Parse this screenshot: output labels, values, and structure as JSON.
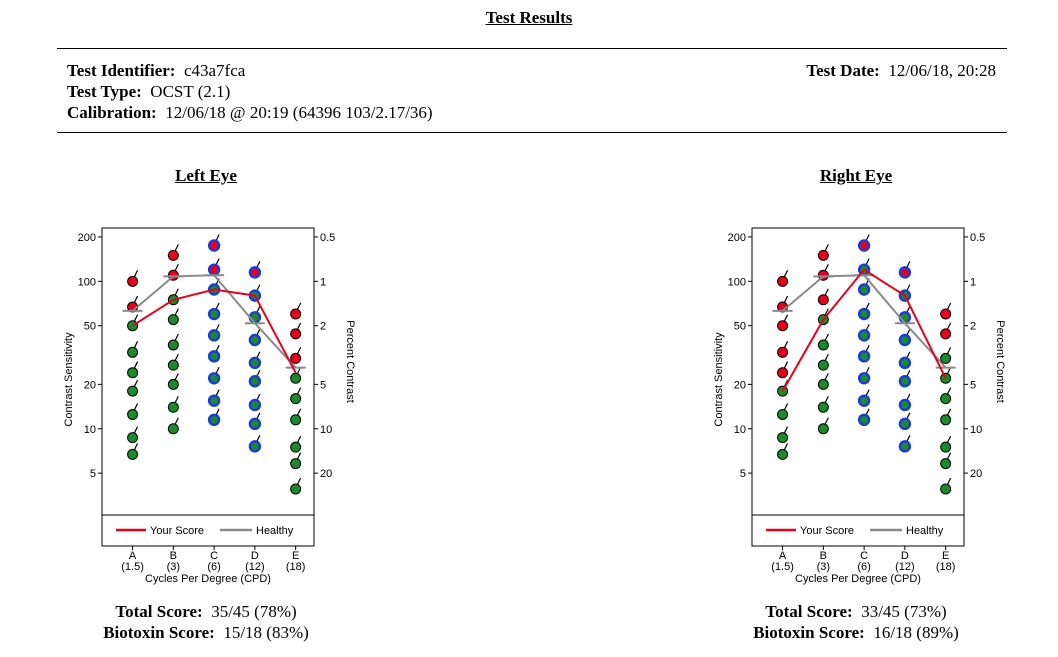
{
  "page": {
    "title": "Test Results",
    "test_identifier_label": "Test Identifier:",
    "test_identifier": "c43a7fca",
    "test_type_label": "Test Type:",
    "test_type": "OCST (2.1)",
    "calibration_label": "Calibration:",
    "calibration": "12/06/18 @ 20:19 (64396 103/2.17/36)",
    "test_date_label": "Test Date:",
    "test_date": "12/06/18, 20:28"
  },
  "colors": {
    "red": "#e8001c",
    "green": "#1a8a2a",
    "blue": "#1a3adf",
    "your_score_line": "#e8001c",
    "healthy_line": "#8a8a8a"
  },
  "left_eye": {
    "title": "Left Eye",
    "total_label": "Total Score:",
    "total": "35/45 (78%)",
    "biotoxin_label": "Biotoxin Score:",
    "biotoxin": "15/18 (83%)"
  },
  "right_eye": {
    "title": "Right Eye",
    "total_label": "Total Score:",
    "total": "33/45 (73%)",
    "biotoxin_label": "Biotoxin Score:",
    "biotoxin": "16/18 (89%)"
  },
  "chart_data": [
    {
      "type": "line",
      "title": "Left Eye",
      "xlabel": "Cycles Per Degree (CPD)",
      "ylabel": "Contrast Sensitivity",
      "y2label": "Percent Contrast",
      "yscale": "log",
      "ylim": [
        2.6,
        230
      ],
      "yticks": [
        200,
        100,
        50,
        20,
        10,
        5
      ],
      "y2ticks": [
        "0.5",
        "1",
        "2",
        "5",
        "10",
        "20"
      ],
      "categories": [
        "A",
        "B",
        "C",
        "D",
        "E"
      ],
      "category_sublabels": [
        "(1.5)",
        "(3)",
        "(6)",
        "(12)",
        "(18)"
      ],
      "legend": [
        "Your Score",
        "Healthy"
      ],
      "series": [
        {
          "name": "Your Score",
          "values": [
            50,
            75,
            88,
            80,
            24
          ]
        },
        {
          "name": "Healthy",
          "values": [
            63,
            108,
            110,
            52,
            26
          ]
        }
      ],
      "dots": [
        {
          "x": 0,
          "y": 100,
          "c": "red"
        },
        {
          "x": 0,
          "y": 67,
          "c": "red"
        },
        {
          "x": 0,
          "y": 50,
          "c": "green"
        },
        {
          "x": 0,
          "y": 33,
          "c": "green"
        },
        {
          "x": 0,
          "y": 24,
          "c": "green"
        },
        {
          "x": 0,
          "y": 18,
          "c": "green"
        },
        {
          "x": 0,
          "y": 12.5,
          "c": "green"
        },
        {
          "x": 0,
          "y": 8.7,
          "c": "green"
        },
        {
          "x": 0,
          "y": 6.7,
          "c": "green"
        },
        {
          "x": 1,
          "y": 150,
          "c": "red"
        },
        {
          "x": 1,
          "y": 110,
          "c": "red"
        },
        {
          "x": 1,
          "y": 75,
          "c": "green"
        },
        {
          "x": 1,
          "y": 55,
          "c": "green"
        },
        {
          "x": 1,
          "y": 37,
          "c": "green"
        },
        {
          "x": 1,
          "y": 27,
          "c": "green"
        },
        {
          "x": 1,
          "y": 20,
          "c": "green"
        },
        {
          "x": 1,
          "y": 14,
          "c": "green"
        },
        {
          "x": 1,
          "y": 10,
          "c": "green"
        },
        {
          "x": 2,
          "y": 175,
          "c": "red",
          "ring": "blue"
        },
        {
          "x": 2,
          "y": 120,
          "c": "red",
          "ring": "blue"
        },
        {
          "x": 2,
          "y": 88,
          "c": "green",
          "ring": "blue"
        },
        {
          "x": 2,
          "y": 60,
          "c": "green",
          "ring": "blue"
        },
        {
          "x": 2,
          "y": 43,
          "c": "green",
          "ring": "blue"
        },
        {
          "x": 2,
          "y": 31,
          "c": "green",
          "ring": "blue"
        },
        {
          "x": 2,
          "y": 22,
          "c": "green",
          "ring": "blue"
        },
        {
          "x": 2,
          "y": 15.5,
          "c": "green",
          "ring": "blue"
        },
        {
          "x": 2,
          "y": 11.5,
          "c": "green",
          "ring": "blue"
        },
        {
          "x": 3,
          "y": 115,
          "c": "red",
          "ring": "blue"
        },
        {
          "x": 3,
          "y": 80,
          "c": "green",
          "ring": "blue"
        },
        {
          "x": 3,
          "y": 57,
          "c": "green",
          "ring": "blue"
        },
        {
          "x": 3,
          "y": 40,
          "c": "green",
          "ring": "blue"
        },
        {
          "x": 3,
          "y": 28,
          "c": "green",
          "ring": "blue"
        },
        {
          "x": 3,
          "y": 21,
          "c": "green",
          "ring": "blue"
        },
        {
          "x": 3,
          "y": 14.5,
          "c": "green",
          "ring": "blue"
        },
        {
          "x": 3,
          "y": 10.8,
          "c": "green",
          "ring": "blue"
        },
        {
          "x": 3,
          "y": 7.6,
          "c": "green",
          "ring": "blue"
        },
        {
          "x": 4,
          "y": 60,
          "c": "red"
        },
        {
          "x": 4,
          "y": 44,
          "c": "red"
        },
        {
          "x": 4,
          "y": 30,
          "c": "red"
        },
        {
          "x": 4,
          "y": 22,
          "c": "green"
        },
        {
          "x": 4,
          "y": 16,
          "c": "green"
        },
        {
          "x": 4,
          "y": 11.5,
          "c": "green"
        },
        {
          "x": 4,
          "y": 7.5,
          "c": "green"
        },
        {
          "x": 4,
          "y": 5.8,
          "c": "green"
        },
        {
          "x": 4,
          "y": 3.9,
          "c": "green"
        }
      ]
    },
    {
      "type": "line",
      "title": "Right Eye",
      "xlabel": "Cycles Per Degree (CPD)",
      "ylabel": "Contrast Sensitivity",
      "y2label": "Percent Contrast",
      "yscale": "log",
      "ylim": [
        2.6,
        230
      ],
      "yticks": [
        200,
        100,
        50,
        20,
        10,
        5
      ],
      "y2ticks": [
        "0.5",
        "1",
        "2",
        "5",
        "10",
        "20"
      ],
      "categories": [
        "A",
        "B",
        "C",
        "D",
        "E"
      ],
      "category_sublabels": [
        "(1.5)",
        "(3)",
        "(6)",
        "(12)",
        "(18)"
      ],
      "legend": [
        "Your Score",
        "Healthy"
      ],
      "series": [
        {
          "name": "Your Score",
          "values": [
            18,
            55,
            120,
            80,
            22
          ]
        },
        {
          "name": "Healthy",
          "values": [
            63,
            108,
            110,
            52,
            26
          ]
        }
      ],
      "dots": [
        {
          "x": 0,
          "y": 100,
          "c": "red"
        },
        {
          "x": 0,
          "y": 67,
          "c": "red"
        },
        {
          "x": 0,
          "y": 50,
          "c": "red"
        },
        {
          "x": 0,
          "y": 33,
          "c": "red"
        },
        {
          "x": 0,
          "y": 24,
          "c": "red"
        },
        {
          "x": 0,
          "y": 18,
          "c": "green"
        },
        {
          "x": 0,
          "y": 12.5,
          "c": "green"
        },
        {
          "x": 0,
          "y": 8.7,
          "c": "green"
        },
        {
          "x": 0,
          "y": 6.7,
          "c": "green"
        },
        {
          "x": 1,
          "y": 150,
          "c": "red"
        },
        {
          "x": 1,
          "y": 110,
          "c": "red"
        },
        {
          "x": 1,
          "y": 75,
          "c": "red"
        },
        {
          "x": 1,
          "y": 55,
          "c": "green"
        },
        {
          "x": 1,
          "y": 37,
          "c": "green"
        },
        {
          "x": 1,
          "y": 27,
          "c": "green"
        },
        {
          "x": 1,
          "y": 20,
          "c": "green"
        },
        {
          "x": 1,
          "y": 14,
          "c": "green"
        },
        {
          "x": 1,
          "y": 10,
          "c": "green"
        },
        {
          "x": 2,
          "y": 175,
          "c": "red",
          "ring": "blue"
        },
        {
          "x": 2,
          "y": 120,
          "c": "green",
          "ring": "blue"
        },
        {
          "x": 2,
          "y": 88,
          "c": "green",
          "ring": "blue"
        },
        {
          "x": 2,
          "y": 60,
          "c": "green",
          "ring": "blue"
        },
        {
          "x": 2,
          "y": 43,
          "c": "green",
          "ring": "blue"
        },
        {
          "x": 2,
          "y": 31,
          "c": "green",
          "ring": "blue"
        },
        {
          "x": 2,
          "y": 22,
          "c": "green",
          "ring": "blue"
        },
        {
          "x": 2,
          "y": 15.5,
          "c": "green",
          "ring": "blue"
        },
        {
          "x": 2,
          "y": 11.5,
          "c": "green",
          "ring": "blue"
        },
        {
          "x": 3,
          "y": 115,
          "c": "red",
          "ring": "blue"
        },
        {
          "x": 3,
          "y": 80,
          "c": "green",
          "ring": "blue"
        },
        {
          "x": 3,
          "y": 57,
          "c": "green",
          "ring": "blue"
        },
        {
          "x": 3,
          "y": 40,
          "c": "green",
          "ring": "blue"
        },
        {
          "x": 3,
          "y": 28,
          "c": "green",
          "ring": "blue"
        },
        {
          "x": 3,
          "y": 21,
          "c": "green",
          "ring": "blue"
        },
        {
          "x": 3,
          "y": 14.5,
          "c": "green",
          "ring": "blue"
        },
        {
          "x": 3,
          "y": 10.8,
          "c": "green",
          "ring": "blue"
        },
        {
          "x": 3,
          "y": 7.6,
          "c": "green",
          "ring": "blue"
        },
        {
          "x": 4,
          "y": 60,
          "c": "red"
        },
        {
          "x": 4,
          "y": 44,
          "c": "red"
        },
        {
          "x": 4,
          "y": 30,
          "c": "green"
        },
        {
          "x": 4,
          "y": 22,
          "c": "green"
        },
        {
          "x": 4,
          "y": 16,
          "c": "green"
        },
        {
          "x": 4,
          "y": 11.5,
          "c": "green"
        },
        {
          "x": 4,
          "y": 7.5,
          "c": "green"
        },
        {
          "x": 4,
          "y": 5.8,
          "c": "green"
        },
        {
          "x": 4,
          "y": 3.9,
          "c": "green"
        }
      ]
    }
  ]
}
